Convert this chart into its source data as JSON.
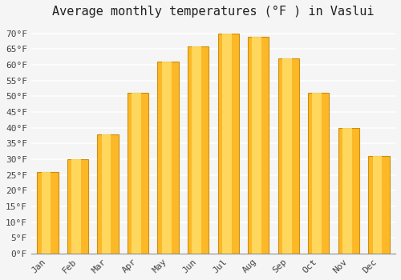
{
  "title": "Average monthly temperatures (°F ) in Vaslui",
  "months": [
    "Jan",
    "Feb",
    "Mar",
    "Apr",
    "May",
    "Jun",
    "Jul",
    "Aug",
    "Sep",
    "Oct",
    "Nov",
    "Dec"
  ],
  "values": [
    26,
    30,
    38,
    51,
    61,
    66,
    70,
    69,
    62,
    51,
    40,
    31
  ],
  "bar_color_main": "#FDB827",
  "bar_color_light": "#FFDD66",
  "bar_color_dark": "#E8A010",
  "bar_edge_color": "#C89010",
  "ylim": [
    0,
    73
  ],
  "yticks": [
    0,
    5,
    10,
    15,
    20,
    25,
    30,
    35,
    40,
    45,
    50,
    55,
    60,
    65,
    70
  ],
  "ytick_labels": [
    "0°F",
    "5°F",
    "10°F",
    "15°F",
    "20°F",
    "25°F",
    "30°F",
    "35°F",
    "40°F",
    "45°F",
    "50°F",
    "55°F",
    "60°F",
    "65°F",
    "70°F"
  ],
  "background_color": "#f5f5f5",
  "plot_bg_color": "#f5f5f5",
  "grid_color": "#ffffff",
  "title_fontsize": 11,
  "tick_fontsize": 8,
  "font_family": "monospace"
}
